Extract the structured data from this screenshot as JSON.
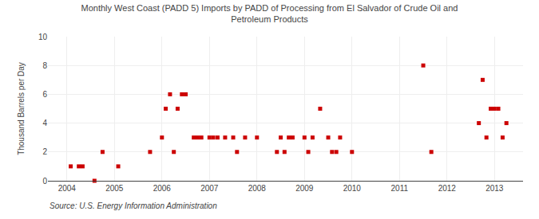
{
  "chart_data": {
    "type": "scatter",
    "title": "Monthly West Coast (PADD 5) Imports by PADD of Processing from El Salvador of Crude Oil and\nPetroleum Products",
    "ylabel": "Thousand Barrels per Day",
    "annotations": [
      "Source: U.S. Energy Information Administration"
    ],
    "color": "#cc0000",
    "marker": "square",
    "grid": true,
    "xlim": [
      2003.6,
      2013.6
    ],
    "xticks": [
      2004,
      2005,
      2006,
      2007,
      2008,
      2009,
      2010,
      2011,
      2012,
      2013
    ],
    "ylim": [
      0,
      10
    ],
    "yticks": [
      0,
      2,
      4,
      6,
      8,
      10
    ],
    "x": [
      2004.08,
      2004.25,
      2004.33,
      2004.58,
      2004.75,
      2005.08,
      2005.75,
      2006.0,
      2006.08,
      2006.17,
      2006.25,
      2006.33,
      2006.42,
      2006.5,
      2006.67,
      2006.75,
      2006.83,
      2007.0,
      2007.08,
      2007.17,
      2007.33,
      2007.5,
      2007.58,
      2007.75,
      2008.0,
      2008.42,
      2008.5,
      2008.58,
      2008.67,
      2008.75,
      2009.0,
      2009.08,
      2009.17,
      2009.33,
      2009.5,
      2009.58,
      2009.67,
      2009.75,
      2010.0,
      2011.5,
      2011.67,
      2012.67,
      2012.75,
      2012.83,
      2012.92,
      2013.0,
      2013.08,
      2013.17,
      2013.25
    ],
    "values": [
      1,
      1,
      1,
      0,
      2,
      1,
      2,
      3,
      5,
      6,
      2,
      5,
      6,
      6,
      3,
      3,
      3,
      3,
      3,
      3,
      3,
      3,
      2,
      3,
      3,
      2,
      3,
      2,
      3,
      3,
      3,
      2,
      3,
      5,
      3,
      2,
      2,
      3,
      2,
      8,
      2,
      4,
      7,
      3,
      5,
      5,
      5,
      3,
      4
    ]
  }
}
